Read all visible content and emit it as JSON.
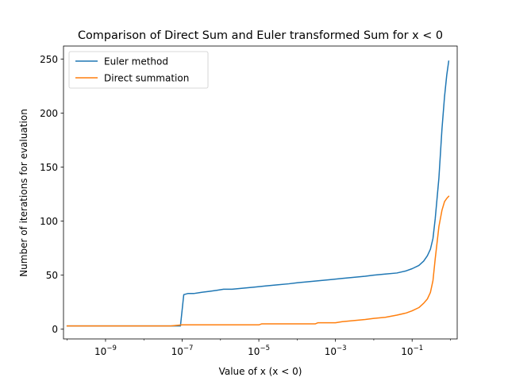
{
  "chart_data": {
    "type": "line",
    "title": "Comparison of Direct Sum and Euler transformed Sum for x < 0",
    "xlabel": "Value of x (x < 0)",
    "ylabel": "Number of iterations for evaluation",
    "xscale": "log",
    "xlim": [
      8e-11,
      1.5
    ],
    "ylim": [
      -9,
      262
    ],
    "xticks": [
      1e-09,
      1e-07,
      1e-05,
      0.001,
      0.1
    ],
    "xtick_labels": [
      {
        "base": "10",
        "exp": "−9"
      },
      {
        "base": "10",
        "exp": "−7"
      },
      {
        "base": "10",
        "exp": "−5"
      },
      {
        "base": "10",
        "exp": "−3"
      },
      {
        "base": "10",
        "exp": "−1"
      }
    ],
    "yticks": [
      0,
      50,
      100,
      150,
      200,
      250
    ],
    "grid": false,
    "legend_position": "upper-left",
    "series": [
      {
        "name": "Euler method",
        "color": "#1f77b4",
        "x": [
          1e-10,
          1e-09,
          1e-08,
          5e-08,
          9e-08,
          1.1e-07,
          1.4e-07,
          2e-07,
          3e-07,
          5e-07,
          8e-07,
          1.2e-06,
          2e-06,
          4e-06,
          8e-06,
          1.5e-05,
          3e-05,
          6e-05,
          0.0001,
          0.0002,
          0.0004,
          0.0008,
          0.0015,
          0.003,
          0.006,
          0.01,
          0.02,
          0.04,
          0.07,
          0.1,
          0.15,
          0.2,
          0.25,
          0.3,
          0.35,
          0.4,
          0.5,
          0.6,
          0.7,
          0.8,
          0.9
        ],
        "y": [
          3,
          3,
          3,
          3,
          3,
          32,
          33,
          33,
          34,
          35,
          36,
          37,
          37,
          38,
          39,
          40,
          41,
          42,
          43,
          44,
          45,
          46,
          47,
          48,
          49,
          50,
          51,
          52,
          54,
          56,
          59,
          63,
          68,
          74,
          84,
          102,
          140,
          185,
          215,
          235,
          248
        ]
      },
      {
        "name": "Direct summation",
        "color": "#ff7f0e",
        "x": [
          1e-10,
          1e-09,
          1e-08,
          5e-08,
          1e-07,
          1e-06,
          1e-05,
          1.2e-05,
          0.0001,
          0.0003,
          0.00035,
          0.001,
          0.0015,
          0.003,
          0.006,
          0.01,
          0.02,
          0.04,
          0.07,
          0.1,
          0.15,
          0.2,
          0.25,
          0.3,
          0.35,
          0.4,
          0.5,
          0.6,
          0.7,
          0.8,
          0.9
        ],
        "y": [
          3,
          3,
          3,
          3,
          4,
          4,
          4,
          5,
          5,
          5,
          6,
          6,
          7,
          8,
          9,
          10,
          11,
          13,
          15,
          17,
          20,
          24,
          28,
          34,
          45,
          65,
          95,
          110,
          118,
          121,
          123
        ]
      }
    ]
  }
}
